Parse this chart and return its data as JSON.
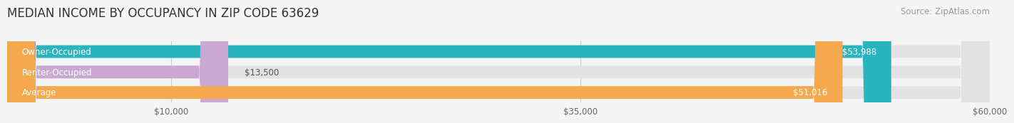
{
  "title": "MEDIAN INCOME BY OCCUPANCY IN ZIP CODE 63629",
  "source": "Source: ZipAtlas.com",
  "categories": [
    "Owner-Occupied",
    "Renter-Occupied",
    "Average"
  ],
  "values": [
    53988,
    13500,
    51016
  ],
  "bar_colors": [
    "#2ab5be",
    "#c9a8d4",
    "#f5a94e"
  ],
  "xlim": [
    0,
    60000
  ],
  "xticks": [
    10000,
    35000,
    60000
  ],
  "xtick_labels": [
    "$10,000",
    "$35,000",
    "$60,000"
  ],
  "value_labels": [
    "$53,988",
    "$13,500",
    "$51,016"
  ],
  "background_color": "#f5f5f5",
  "bar_background_color": "#e2e2e2",
  "title_fontsize": 12,
  "source_fontsize": 8.5,
  "label_fontsize": 8.5,
  "tick_fontsize": 8.5
}
